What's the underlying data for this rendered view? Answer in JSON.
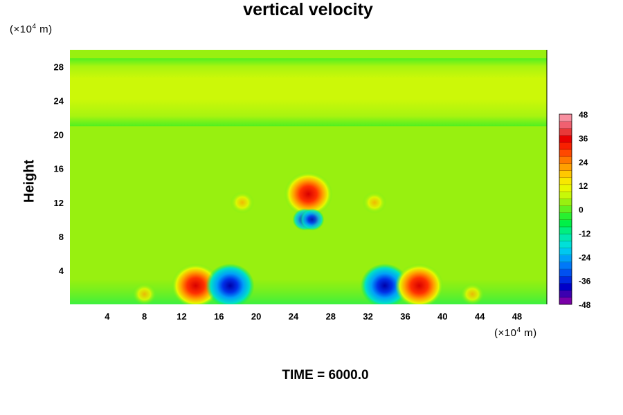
{
  "chart_data": {
    "type": "heatmap",
    "title": "vertical velocity",
    "ylabel": "Height",
    "xlabel": "",
    "x_unit": {
      "prefix": "(×10",
      "exp": "4",
      "suffix": " m)"
    },
    "y_unit": {
      "prefix": "(×10",
      "exp": "4",
      "suffix": " m)"
    },
    "xlim": [
      0,
      51.2
    ],
    "ylim": [
      0,
      30
    ],
    "xticks": [
      4,
      8,
      12,
      16,
      20,
      24,
      28,
      32,
      36,
      40,
      44,
      48
    ],
    "yticks": [
      4,
      8,
      12,
      16,
      20,
      24,
      28
    ],
    "colorbar": {
      "min": -48,
      "max": 48,
      "ticks": [
        48,
        36,
        24,
        12,
        0,
        -12,
        -24,
        -36,
        -48
      ],
      "colors": [
        "#7a00a8",
        "#3c00b0",
        "#0000c8",
        "#0028e0",
        "#0050f0",
        "#0078f8",
        "#00a0f8",
        "#00c8f0",
        "#00e0d8",
        "#00e8b0",
        "#00ee80",
        "#00f048",
        "#28f030",
        "#60f020",
        "#98f010",
        "#c8f808",
        "#e8f800",
        "#f8e800",
        "#ffc800",
        "#ffa000",
        "#ff7800",
        "#ff4800",
        "#f82000",
        "#e80000",
        "#e83838",
        "#f06070",
        "#f890a0"
      ]
    },
    "background_value": 3,
    "upper_band": {
      "y_range": [
        21,
        29
      ],
      "value": 12
    },
    "features": [
      {
        "x": 13.5,
        "y": 2.2,
        "value": 42
      },
      {
        "x": 17.2,
        "y": 2.2,
        "value": -42
      },
      {
        "x": 33.8,
        "y": 2.2,
        "value": -42
      },
      {
        "x": 37.5,
        "y": 2.2,
        "value": 42
      },
      {
        "x": 25.6,
        "y": 13.0,
        "value": 40
      },
      {
        "x": 25.2,
        "y": 10.0,
        "value": -15
      },
      {
        "x": 26.0,
        "y": 10.0,
        "value": -15
      },
      {
        "x": 18.5,
        "y": 12.0,
        "value": 22
      },
      {
        "x": 32.7,
        "y": 12.0,
        "value": 22
      },
      {
        "x": 8.0,
        "y": 1.2,
        "value": 20
      },
      {
        "x": 43.2,
        "y": 1.2,
        "value": 20
      }
    ],
    "time_label": "TIME = 6000.0"
  }
}
